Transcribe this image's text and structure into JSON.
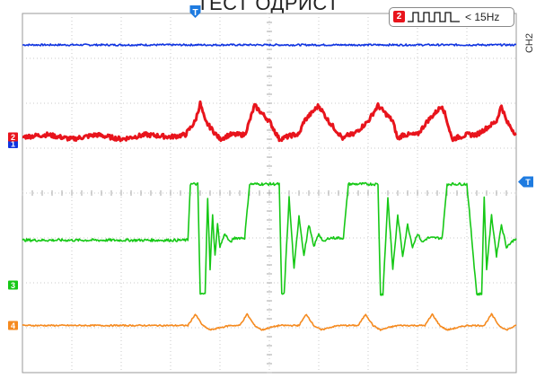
{
  "header": {
    "title": "ТЕСТ ОДРИСТ"
  },
  "trigger": {
    "source_badge": "2",
    "condition": "< 15Hz",
    "marker": "T"
  },
  "side_tab": {
    "label": "CH2"
  },
  "channels": [
    {
      "id": "1",
      "color": "#1034e0"
    },
    {
      "id": "2",
      "color": "#e8141c"
    },
    {
      "id": "3",
      "color": "#16c816"
    },
    {
      "id": "4",
      "color": "#f58a1f"
    }
  ],
  "chart_data": {
    "type": "line",
    "title": "",
    "xlabel": "",
    "ylabel": "",
    "grid": true,
    "divisions": {
      "x": 10,
      "y": 8
    },
    "x_range": [
      0,
      10
    ],
    "y_range": [
      0,
      8
    ],
    "trigger_x": 3.5,
    "series": [
      {
        "channel": "1",
        "color": "#1034e0",
        "x": [
          0,
          10
        ],
        "y": [
          7.3,
          7.3
        ],
        "noise": 0.02
      },
      {
        "channel": "2",
        "color": "#e8141c",
        "x": [
          0,
          0.5,
          1.0,
          1.5,
          2.0,
          2.5,
          3.0,
          3.3,
          3.5,
          3.6,
          3.7,
          4.0,
          4.2,
          4.5,
          4.6,
          4.7,
          5.0,
          5.2,
          5.5,
          5.6,
          5.7,
          6.0,
          6.2,
          6.5,
          6.6,
          6.7,
          7.0,
          7.2,
          7.5,
          7.6,
          7.7,
          8.0,
          8.2,
          8.5,
          8.6,
          8.7,
          9.0,
          9.2,
          9.6,
          9.7,
          9.8,
          10.0
        ],
        "y": [
          5.25,
          5.3,
          5.2,
          5.3,
          5.2,
          5.3,
          5.25,
          5.3,
          5.6,
          6.0,
          5.6,
          5.2,
          5.3,
          5.3,
          5.6,
          5.95,
          5.6,
          5.2,
          5.3,
          5.3,
          5.6,
          5.95,
          5.6,
          5.2,
          5.3,
          5.3,
          5.6,
          5.95,
          5.6,
          5.2,
          5.3,
          5.3,
          5.6,
          5.95,
          5.6,
          5.2,
          5.3,
          5.3,
          5.6,
          5.95,
          5.6,
          5.3
        ],
        "noise": 0.05
      },
      {
        "channel": "3",
        "color": "#16c816",
        "x": [
          0,
          1.0,
          2.0,
          3.0,
          3.35,
          3.4,
          3.5,
          3.55,
          3.6,
          3.7,
          3.75,
          3.8,
          3.85,
          3.9,
          3.95,
          4.0,
          4.1,
          4.2,
          4.3,
          4.5,
          4.6,
          4.7,
          5.0,
          5.2,
          5.25,
          5.3,
          5.4,
          5.5,
          5.6,
          5.7,
          5.8,
          5.9,
          6.0,
          6.1,
          6.2,
          6.3,
          6.5,
          6.6,
          6.7,
          7.0,
          7.2,
          7.25,
          7.3,
          7.4,
          7.5,
          7.6,
          7.7,
          7.8,
          7.9,
          8.0,
          8.1,
          8.2,
          8.3,
          8.5,
          8.6,
          8.7,
          9.0,
          9.2,
          9.3,
          9.35,
          9.4,
          9.5,
          9.6,
          9.7,
          9.8,
          10.0
        ],
        "y": [
          2.95,
          2.95,
          2.95,
          2.95,
          2.95,
          4.2,
          4.2,
          4.2,
          1.75,
          1.75,
          3.9,
          2.3,
          3.5,
          2.6,
          3.3,
          2.8,
          3.1,
          2.9,
          3.0,
          3.0,
          4.2,
          4.2,
          4.2,
          4.2,
          1.75,
          1.75,
          3.9,
          2.3,
          3.5,
          2.6,
          3.3,
          2.8,
          3.1,
          2.9,
          3.0,
          3.0,
          3.0,
          4.2,
          4.2,
          4.2,
          4.2,
          1.75,
          1.75,
          3.9,
          2.3,
          3.5,
          2.6,
          3.3,
          2.8,
          3.1,
          2.9,
          3.0,
          3.0,
          3.0,
          4.2,
          4.2,
          4.2,
          1.75,
          1.75,
          3.9,
          2.3,
          3.5,
          2.6,
          3.3,
          2.8,
          3.0
        ],
        "noise": 0.03
      },
      {
        "channel": "4",
        "color": "#f58a1f",
        "x": [
          0,
          1.0,
          2.0,
          3.0,
          3.35,
          3.5,
          3.65,
          3.8,
          4.0,
          4.2,
          4.4,
          4.55,
          4.7,
          4.85,
          5.0,
          5.2,
          5.4,
          5.6,
          5.75,
          5.9,
          6.05,
          6.2,
          6.4,
          6.6,
          6.8,
          6.95,
          7.1,
          7.25,
          7.4,
          7.6,
          7.8,
          8.0,
          8.15,
          8.3,
          8.45,
          8.6,
          8.8,
          9.0,
          9.2,
          9.35,
          9.5,
          9.65,
          9.8,
          10.0
        ],
        "y": [
          1.05,
          1.05,
          1.05,
          1.05,
          1.05,
          1.3,
          1.05,
          0.95,
          1.0,
          1.05,
          1.05,
          1.3,
          1.05,
          0.95,
          1.0,
          1.05,
          1.05,
          1.05,
          1.3,
          1.05,
          0.95,
          1.0,
          1.05,
          1.05,
          1.05,
          1.3,
          1.05,
          0.95,
          1.0,
          1.05,
          1.05,
          1.05,
          1.05,
          1.3,
          1.05,
          0.95,
          1.0,
          1.05,
          1.05,
          1.05,
          1.3,
          1.05,
          0.95,
          1.05
        ],
        "noise": 0.015
      }
    ]
  }
}
